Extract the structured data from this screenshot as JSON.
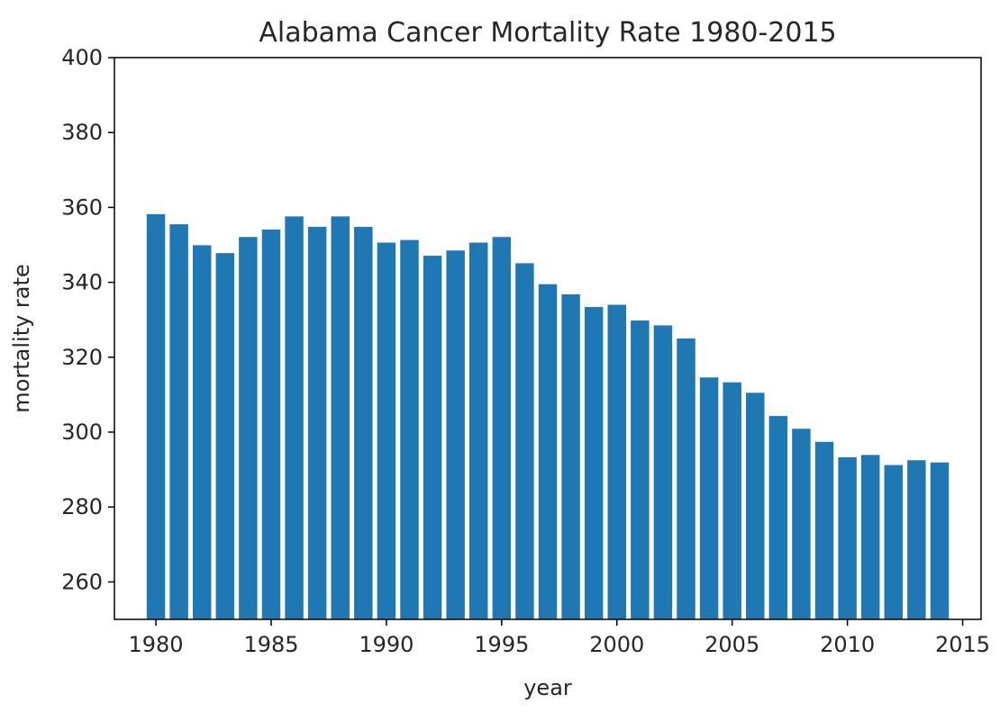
{
  "chart_data": {
    "type": "bar",
    "title": "Alabama Cancer Mortality Rate 1980-2015",
    "xlabel": "year",
    "ylabel": "mortality rate",
    "xlim": [
      1978.2,
      2015.8
    ],
    "ylim": [
      250,
      400
    ],
    "xticks": [
      1980,
      1985,
      1990,
      1995,
      2000,
      2005,
      2010,
      2015
    ],
    "yticks": [
      260,
      280,
      300,
      320,
      340,
      360,
      380,
      400
    ],
    "grid": false,
    "bar_color": "#1f77b4",
    "x": [
      1980,
      1981,
      1982,
      1983,
      1984,
      1985,
      1986,
      1987,
      1988,
      1989,
      1990,
      1991,
      1992,
      1993,
      1994,
      1995,
      1996,
      1997,
      1998,
      1999,
      2000,
      2001,
      2002,
      2003,
      2004,
      2005,
      2006,
      2007,
      2008,
      2009,
      2010,
      2011,
      2012,
      2013,
      2014
    ],
    "values": [
      358.2,
      355.5,
      349.9,
      347.8,
      352.1,
      354.1,
      357.6,
      354.8,
      357.6,
      354.8,
      350.6,
      351.3,
      347.1,
      348.5,
      350.6,
      352.1,
      345.1,
      339.5,
      336.8,
      333.4,
      334.0,
      329.8,
      328.5,
      325.0,
      314.6,
      313.3,
      310.5,
      304.3,
      300.9,
      297.4,
      293.3,
      293.9,
      291.2,
      292.5,
      291.9
    ]
  }
}
